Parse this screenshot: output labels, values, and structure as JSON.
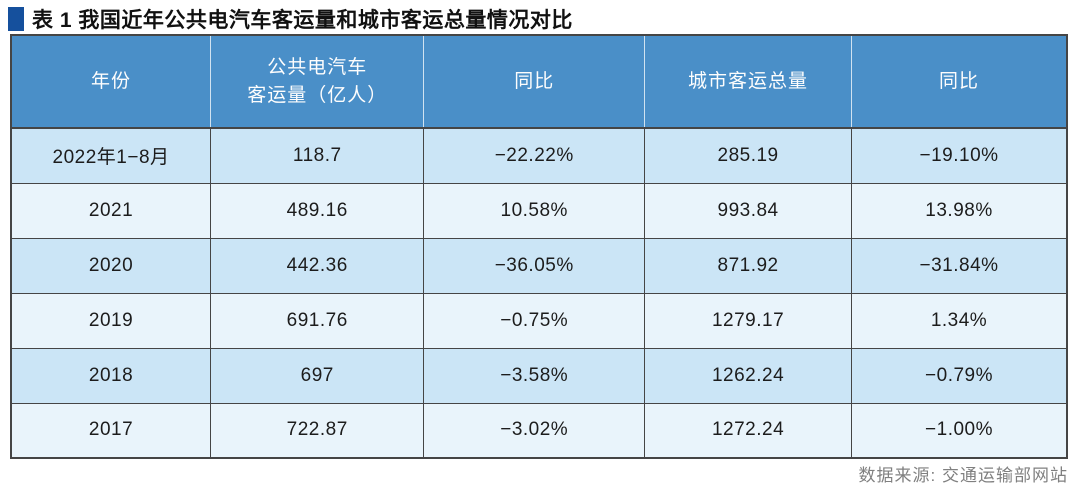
{
  "title": "表 1 我国近年公共电汽车客运量和城市客运总量情况对比",
  "table": {
    "header": [
      [
        "年份"
      ],
      [
        "公共电汽车",
        "客运量（亿人）"
      ],
      [
        "同比"
      ],
      [
        "城市客运总量"
      ],
      [
        "同比"
      ]
    ],
    "rows": [
      [
        "2022年1−8月",
        "118.7",
        "−22.22%",
        "285.19",
        "−19.10%"
      ],
      [
        "2021",
        "489.16",
        "10.58%",
        "993.84",
        "13.98%"
      ],
      [
        "2020",
        "442.36",
        "−36.05%",
        "871.92",
        "−31.84%"
      ],
      [
        "2019",
        "691.76",
        "−0.75%",
        "1279.17",
        "1.34%"
      ],
      [
        "2018",
        "697",
        "−3.58%",
        "1262.24",
        "−0.79%"
      ],
      [
        "2017",
        "722.87",
        "−3.02%",
        "1272.24",
        "−1.00%"
      ]
    ]
  },
  "footer": {
    "source": "数据来源: 交通运输部网站"
  },
  "colors": {
    "header_bg": "#4a8fc8",
    "row_dark": "#cbe5f6",
    "row_light": "#e9f4fb",
    "title_bullet": "#15509d",
    "border": "#454545"
  }
}
